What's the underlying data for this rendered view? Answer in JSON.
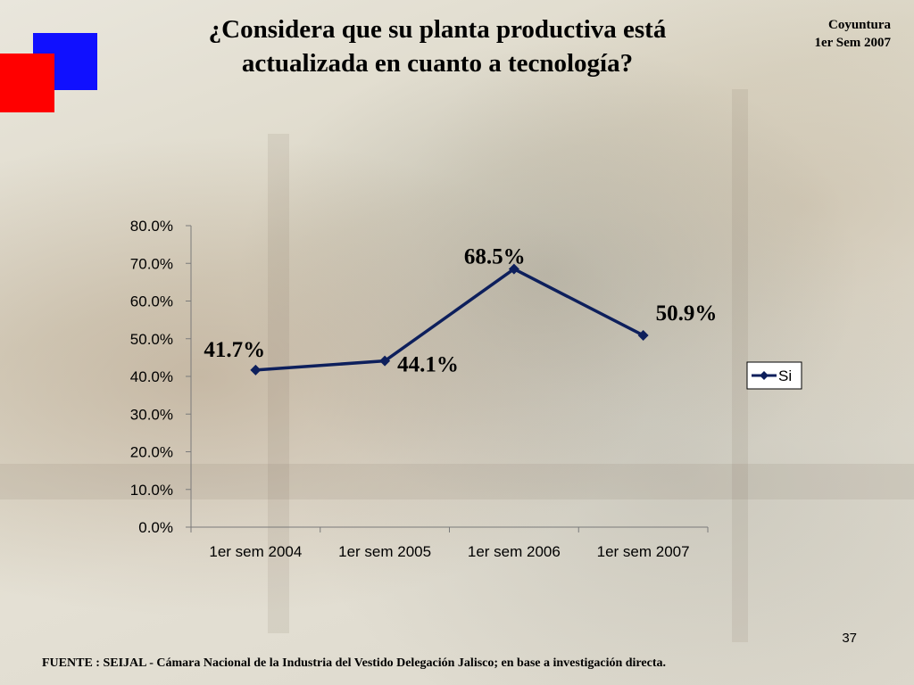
{
  "slide": {
    "title_line1": "¿Considera que su planta productiva está",
    "title_line2": "actualizada en cuanto a tecnología?",
    "corner_line1": "Coyuntura",
    "corner_line2": "1er Sem 2007",
    "page_number": "37",
    "source": "FUENTE :  SEIJAL - Cámara Nacional de la Industria del Vestido Delegación Jalisco;  en base a investigación directa.",
    "brand_colors": {
      "blue_square": "#1010ff",
      "red_square": "#ff0000"
    }
  },
  "chart_data": {
    "type": "line",
    "categories": [
      "1er sem 2004",
      "1er sem 2005",
      "1er sem 2006",
      "1er sem 2007"
    ],
    "series": [
      {
        "name": "Si",
        "values": [
          41.7,
          44.1,
          68.5,
          50.9
        ],
        "color": "#0d1f5c"
      }
    ],
    "data_labels": [
      "41.7%",
      "44.1%",
      "68.5%",
      "50.9%"
    ],
    "yticks": [
      "0.0%",
      "10.0%",
      "20.0%",
      "30.0%",
      "40.0%",
      "50.0%",
      "60.0%",
      "70.0%",
      "80.0%"
    ],
    "ylim": [
      0,
      80
    ],
    "grid": false,
    "legend": "right"
  }
}
